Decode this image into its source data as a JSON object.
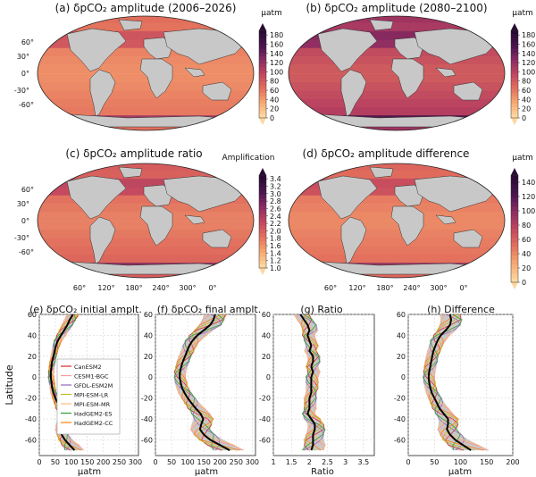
{
  "figure_label": "δpCO₂ amplitude maps and zonal-mean latitude profiles",
  "colors": {
    "ocean_ramp": [
      "#fdd7a0",
      "#f7a671",
      "#e3705c",
      "#c24660",
      "#8c2c63",
      "#4a1550",
      "#2a0a33"
    ],
    "land": "#c8c8c8",
    "coast": "#333333",
    "grid": "#cccccc",
    "ensemble_mean": "#000000",
    "ensemble_band": "#b0b0b0"
  },
  "chart_data": [
    {
      "type": "heatmap",
      "id": "a",
      "title": "(a) δpCO₂ amplitude (2006–2026)",
      "colorbar_label": "μatm",
      "colorbar_ticks": [
        "0",
        "20",
        "40",
        "60",
        "80",
        "100",
        "120",
        "140",
        "160",
        "180"
      ],
      "vrange": [
        0,
        190
      ],
      "lat_ticks": [
        "60°",
        "30°",
        "0°",
        "-30°",
        "-60°"
      ],
      "intensity": 0.35
    },
    {
      "type": "heatmap",
      "id": "b",
      "title": "(b) δpCO₂ amplitude (2080–2100)",
      "colorbar_label": "μatm",
      "colorbar_ticks": [
        "0",
        "20",
        "40",
        "60",
        "80",
        "100",
        "120",
        "140",
        "160",
        "180"
      ],
      "vrange": [
        0,
        190
      ],
      "intensity": 0.62
    },
    {
      "type": "heatmap",
      "id": "c",
      "title": "(c) δpCO₂ amplitude ratio",
      "colorbar_label": "Amplification",
      "colorbar_ticks": [
        "1.0",
        "1.2",
        "1.4",
        "1.6",
        "1.8",
        "2.0",
        "2.2",
        "2.4",
        "2.6",
        "2.8",
        "3.0",
        "3.2",
        "3.4"
      ],
      "vrange": [
        1.0,
        3.5
      ],
      "lat_ticks": [
        "60°",
        "30°",
        "0°",
        "-30°",
        "-60°"
      ],
      "lon_ticks": [
        "60°",
        "120°",
        "180°",
        "240°",
        "300°",
        "0°"
      ],
      "intensity": 0.42
    },
    {
      "type": "heatmap",
      "id": "d",
      "title": "(d) δpCO₂ amplitude difference",
      "colorbar_label": "μatm",
      "colorbar_ticks": [
        "0",
        "20",
        "40",
        "60",
        "80",
        "100",
        "120",
        "140"
      ],
      "vrange": [
        0,
        150
      ],
      "lon_ticks": [
        "60°",
        "120°",
        "180°",
        "240°",
        "300°",
        "0°"
      ],
      "intensity": 0.38
    },
    {
      "type": "line",
      "id": "e",
      "title": "(e) δpCO₂ initial amplt.",
      "xlabel": "μatm",
      "ylabel": "Latitude",
      "xlim": [
        0,
        310
      ],
      "ylim": [
        -75,
        60
      ],
      "xticks": [
        0,
        50,
        100,
        150,
        200,
        250,
        300
      ],
      "yticks": [
        60,
        40,
        20,
        0,
        -20,
        -40,
        -60
      ],
      "legend": [
        "CanESM2",
        "CESM1-BGC",
        "GFDL-ESM2M",
        "MPI-ESM-LR",
        "MPI-ESM-MR",
        "HadGEM2-ES",
        "HadGEM2-CC"
      ],
      "legend_colors": [
        "#d62728",
        "#ff9896",
        "#9467bd",
        "#bcbd22",
        "#ffbb78",
        "#2ca02c",
        "#ff7f0e"
      ],
      "lat": [
        60,
        55,
        50,
        45,
        40,
        35,
        30,
        25,
        20,
        15,
        10,
        5,
        0,
        -5,
        -10,
        -15,
        -20,
        -25,
        -30,
        -35,
        -40,
        -45,
        -50,
        -55,
        -60,
        -65,
        -70
      ],
      "mean": [
        105,
        95,
        88,
        78,
        68,
        58,
        52,
        48,
        44,
        40,
        38,
        36,
        36,
        38,
        40,
        44,
        50,
        58,
        65,
        72,
        72,
        66,
        64,
        70,
        80,
        95,
        110
      ],
      "band_low": [
        85,
        78,
        70,
        62,
        54,
        46,
        42,
        38,
        36,
        32,
        30,
        28,
        28,
        30,
        32,
        35,
        40,
        46,
        52,
        58,
        58,
        52,
        50,
        54,
        60,
        70,
        80
      ],
      "band_high": [
        125,
        115,
        105,
        95,
        84,
        72,
        64,
        58,
        54,
        50,
        48,
        46,
        46,
        48,
        50,
        54,
        62,
        72,
        80,
        88,
        90,
        84,
        82,
        90,
        105,
        125,
        140
      ]
    },
    {
      "type": "line",
      "id": "f",
      "title": "(f) δpCO₂ final amplt.",
      "xlabel": "μatm",
      "xlim": [
        0,
        310
      ],
      "ylim": [
        -75,
        60
      ],
      "xticks": [
        0,
        50,
        100,
        150,
        200,
        250,
        300
      ],
      "yticks": [
        60,
        40,
        20,
        0,
        -20,
        -40,
        -60
      ],
      "lat": [
        60,
        55,
        50,
        45,
        40,
        35,
        30,
        25,
        20,
        15,
        10,
        5,
        0,
        -5,
        -10,
        -15,
        -20,
        -25,
        -30,
        -35,
        -40,
        -45,
        -50,
        -55,
        -60,
        -65,
        -70
      ],
      "mean": [
        185,
        180,
        170,
        150,
        130,
        115,
        105,
        98,
        92,
        85,
        80,
        76,
        75,
        78,
        82,
        90,
        100,
        112,
        125,
        140,
        148,
        142,
        138,
        150,
        170,
        200,
        230
      ],
      "band_low": [
        150,
        145,
        135,
        120,
        105,
        92,
        84,
        78,
        72,
        66,
        62,
        58,
        58,
        60,
        64,
        70,
        80,
        90,
        100,
        112,
        118,
        112,
        108,
        118,
        135,
        160,
        180
      ],
      "band_high": [
        220,
        215,
        205,
        180,
        160,
        140,
        128,
        120,
        112,
        105,
        100,
        95,
        94,
        98,
        102,
        112,
        124,
        138,
        154,
        170,
        180,
        175,
        170,
        185,
        210,
        245,
        275
      ]
    },
    {
      "type": "line",
      "id": "g",
      "title": "(g) Ratio",
      "xlabel": "Ratio",
      "xlim": [
        1.0,
        3.8
      ],
      "ylim": [
        -75,
        60
      ],
      "xticks": [
        1.0,
        1.5,
        2.0,
        2.5,
        3.0,
        3.5
      ],
      "yticks": [
        60,
        40,
        20,
        0,
        -20,
        -40,
        -60
      ],
      "lat": [
        60,
        55,
        50,
        45,
        40,
        35,
        30,
        25,
        20,
        15,
        10,
        5,
        0,
        -5,
        -10,
        -15,
        -20,
        -25,
        -30,
        -35,
        -40,
        -45,
        -50,
        -55,
        -60,
        -65,
        -70
      ],
      "mean": [
        1.75,
        1.85,
        1.95,
        2.0,
        1.95,
        2.0,
        2.05,
        2.0,
        2.1,
        2.1,
        2.05,
        2.1,
        2.05,
        2.05,
        2.05,
        2.05,
        2.0,
        2.0,
        2.0,
        1.95,
        2.05,
        2.15,
        2.15,
        2.1,
        2.1,
        2.1,
        2.05
      ],
      "band_low": [
        1.55,
        1.65,
        1.75,
        1.8,
        1.8,
        1.85,
        1.9,
        1.85,
        1.95,
        1.95,
        1.9,
        1.95,
        1.9,
        1.9,
        1.9,
        1.9,
        1.85,
        1.85,
        1.85,
        1.8,
        1.85,
        1.95,
        1.95,
        1.9,
        1.85,
        1.85,
        1.8
      ],
      "band_high": [
        2.0,
        2.1,
        2.2,
        2.25,
        2.15,
        2.2,
        2.25,
        2.2,
        2.3,
        2.3,
        2.25,
        2.3,
        2.25,
        2.25,
        2.25,
        2.2,
        2.2,
        2.2,
        2.2,
        2.15,
        2.3,
        2.4,
        2.45,
        2.4,
        2.4,
        2.45,
        2.4
      ]
    },
    {
      "type": "line",
      "id": "h",
      "title": "(h) Difference",
      "xlabel": "μatm",
      "xlim": [
        0,
        200
      ],
      "ylim": [
        -75,
        60
      ],
      "xticks": [
        0,
        50,
        100,
        150,
        200
      ],
      "yticks": [
        60,
        40,
        20,
        0,
        -20,
        -40,
        -60
      ],
      "lat": [
        60,
        55,
        50,
        45,
        40,
        35,
        30,
        25,
        20,
        15,
        10,
        5,
        0,
        -5,
        -10,
        -15,
        -20,
        -25,
        -30,
        -35,
        -40,
        -45,
        -50,
        -55,
        -60,
        -65,
        -70
      ],
      "mean": [
        80,
        82,
        80,
        72,
        62,
        56,
        52,
        48,
        46,
        44,
        42,
        40,
        39,
        40,
        42,
        45,
        50,
        55,
        60,
        68,
        76,
        76,
        74,
        80,
        90,
        105,
        120
      ],
      "band_low": [
        60,
        62,
        60,
        55,
        48,
        42,
        40,
        36,
        34,
        32,
        30,
        29,
        28,
        29,
        31,
        34,
        38,
        42,
        46,
        52,
        58,
        58,
        56,
        60,
        66,
        76,
        86
      ],
      "band_high": [
        100,
        104,
        100,
        92,
        80,
        72,
        66,
        62,
        58,
        56,
        54,
        52,
        51,
        52,
        54,
        58,
        64,
        70,
        78,
        86,
        96,
        96,
        94,
        102,
        115,
        135,
        155
      ]
    }
  ]
}
